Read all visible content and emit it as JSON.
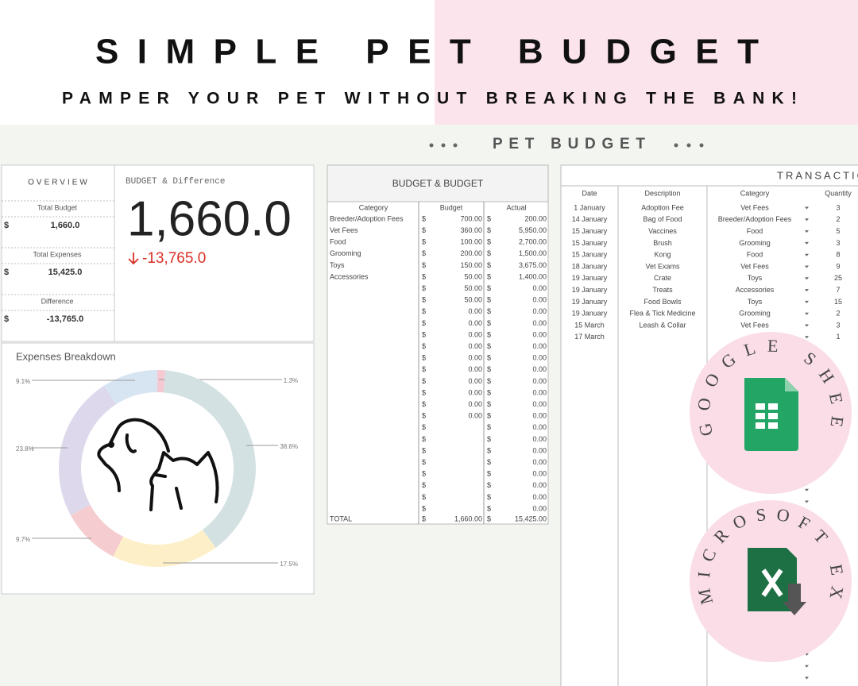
{
  "header": {
    "title": "SIMPLE PET BUDGET",
    "subtitle": "PAMPER YOUR PET WITHOUT BREAKING THE BANK!"
  },
  "section_title": "PET BUDGET",
  "overview": {
    "title": "OVERVIEW",
    "currency": "$",
    "items": [
      {
        "label": "Total Budget",
        "value": "1,660.0"
      },
      {
        "label": "Total Expenses",
        "value": "15,425.0"
      },
      {
        "label": "Difference",
        "value": "-13,765.0"
      }
    ]
  },
  "scorecard": {
    "title": "BUDGET & Difference",
    "value": "1,660.0",
    "delta": "-13,765.0"
  },
  "expenses_chart": {
    "type": "pie",
    "title": "Expenses Breakdown",
    "values": [
      1.3,
      38.6,
      17.5,
      9.7,
      23.8,
      9.1
    ],
    "value_labels": [
      "1.3%",
      "38.6%",
      "17.5%",
      "9.7%",
      "23.8%",
      "9.1%"
    ],
    "colors": [
      "#f5c9d1",
      "#d3e1e3",
      "#fdf0c9",
      "#f5cdd0",
      "#ddd8ec",
      "#d7e5f3"
    ]
  },
  "budget_table": {
    "title": "BUDGET & BUDGET",
    "currency": "$",
    "columns": [
      "Category",
      "Budget",
      "Actual"
    ],
    "rows": [
      [
        "Breeder/Adoption Fees",
        "700.00",
        "200.00"
      ],
      [
        "Vet Fees",
        "360.00",
        "5,950.00"
      ],
      [
        "Food",
        "100.00",
        "2,700.00"
      ],
      [
        "Grooming",
        "200.00",
        "1,500.00"
      ],
      [
        "Toys",
        "150.00",
        "3,675.00"
      ],
      [
        "Accessories",
        "50.00",
        "1,400.00"
      ],
      [
        null,
        "50.00",
        "0.00"
      ],
      [
        null,
        "50.00",
        "0.00"
      ],
      [
        null,
        "0.00",
        "0.00"
      ],
      [
        null,
        "0.00",
        "0.00"
      ],
      [
        null,
        "0.00",
        "0.00"
      ],
      [
        null,
        "0.00",
        "0.00"
      ],
      [
        null,
        "0.00",
        "0.00"
      ],
      [
        null,
        "0.00",
        "0.00"
      ],
      [
        null,
        "0.00",
        "0.00"
      ],
      [
        null,
        "0.00",
        "0.00"
      ],
      [
        null,
        "0.00",
        "0.00"
      ],
      [
        null,
        "0.00",
        "0.00"
      ],
      [
        null,
        null,
        "0.00"
      ],
      [
        null,
        null,
        "0.00"
      ],
      [
        null,
        null,
        "0.00"
      ],
      [
        null,
        null,
        "0.00"
      ],
      [
        null,
        null,
        "0.00"
      ],
      [
        null,
        null,
        "0.00"
      ],
      [
        null,
        null,
        "0.00"
      ],
      [
        null,
        null,
        "0.00"
      ]
    ],
    "total": [
      "TOTAL",
      "1,660.00",
      "15,425.00"
    ]
  },
  "transactions": {
    "title": "TRANSACTIONS",
    "columns": [
      "Date",
      "Description",
      "Category",
      "Quantity"
    ],
    "rows": [
      [
        "1 January",
        "Adoption Fee",
        "Vet Fees",
        "3"
      ],
      [
        "14 January",
        "Bag of Food",
        "Breeder/Adoption Fees",
        "2"
      ],
      [
        "15 January",
        "Vaccines",
        "Food",
        "5"
      ],
      [
        "15 January",
        "Brush",
        "Grooming",
        "3"
      ],
      [
        "15 January",
        "Kong",
        "Food",
        "8"
      ],
      [
        "18 January",
        "Vet Exams",
        "Vet Fees",
        "9"
      ],
      [
        "19 January",
        "Crate",
        "Toys",
        "25"
      ],
      [
        "19 January",
        "Treats",
        "Accessories",
        "7"
      ],
      [
        "19 January",
        "Food Bowls",
        "Toys",
        "15"
      ],
      [
        "19 January",
        "Flea & Tick Medicine",
        "Grooming",
        "2"
      ],
      [
        "15 March",
        "Leash & Collar",
        "Vet Fees",
        "3"
      ],
      [
        "17 March",
        null,
        null,
        "1"
      ]
    ]
  },
  "badges": [
    "GOOGLE SHEETS",
    "MICROSOFT EXCEL"
  ]
}
